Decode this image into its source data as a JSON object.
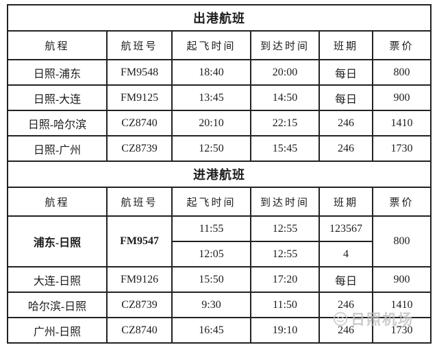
{
  "table": {
    "columns": [
      {
        "key": "route",
        "label": "航程"
      },
      {
        "key": "flight-no",
        "label": "航班号"
      },
      {
        "key": "dep-time",
        "label": "起飞时间"
      },
      {
        "key": "arr-time",
        "label": "到达时间"
      },
      {
        "key": "schedule",
        "label": "班期"
      },
      {
        "key": "price",
        "label": "票价"
      }
    ],
    "sections": [
      {
        "title": "出港航班",
        "rows": [
          {
            "cells": [
              {
                "n": "route",
                "t": "日照-浦东"
              },
              {
                "n": "flight-no",
                "t": "FM9548"
              },
              {
                "n": "dep-time",
                "t": "18:40"
              },
              {
                "n": "arr-time",
                "t": "20:00"
              },
              {
                "n": "schedule",
                "t": "每日"
              },
              {
                "n": "price",
                "t": "800"
              }
            ]
          },
          {
            "cells": [
              {
                "n": "route",
                "t": "日照-大连"
              },
              {
                "n": "flight-no",
                "t": "FM9125"
              },
              {
                "n": "dep-time",
                "t": "13:45"
              },
              {
                "n": "arr-time",
                "t": "14:50"
              },
              {
                "n": "schedule",
                "t": "每日"
              },
              {
                "n": "price",
                "t": "900"
              }
            ]
          },
          {
            "cells": [
              {
                "n": "route",
                "t": "日照-哈尔滨"
              },
              {
                "n": "flight-no",
                "t": "CZ8740"
              },
              {
                "n": "dep-time",
                "t": "20:10"
              },
              {
                "n": "arr-time",
                "t": "22:15"
              },
              {
                "n": "schedule",
                "t": "246"
              },
              {
                "n": "price",
                "t": "1410"
              }
            ]
          },
          {
            "cells": [
              {
                "n": "route",
                "t": "日照-广州"
              },
              {
                "n": "flight-no",
                "t": "CZ8739"
              },
              {
                "n": "dep-time",
                "t": "12:50"
              },
              {
                "n": "arr-time",
                "t": "15:45"
              },
              {
                "n": "schedule",
                "t": "246"
              },
              {
                "n": "price",
                "t": "1730"
              }
            ]
          }
        ]
      },
      {
        "title": "进港航班",
        "rows": [
          {
            "cells": [
              {
                "n": "route",
                "t": "浦东-日照",
                "rs": 2,
                "b": true
              },
              {
                "n": "flight-no",
                "t": "FM9547",
                "rs": 2,
                "b": true
              },
              {
                "n": "dep-time",
                "t": "11:55"
              },
              {
                "n": "arr-time",
                "t": "12:55"
              },
              {
                "n": "schedule",
                "t": "123567"
              },
              {
                "n": "price",
                "t": "800",
                "rs": 2
              }
            ]
          },
          {
            "cells": [
              {
                "n": "dep-time",
                "t": "12:05"
              },
              {
                "n": "arr-time",
                "t": "12:55"
              },
              {
                "n": "schedule",
                "t": "4"
              }
            ]
          },
          {
            "cells": [
              {
                "n": "route",
                "t": "大连-日照"
              },
              {
                "n": "flight-no",
                "t": "FM9126"
              },
              {
                "n": "dep-time",
                "t": "15:50"
              },
              {
                "n": "arr-time",
                "t": "17:20"
              },
              {
                "n": "schedule",
                "t": "每日"
              },
              {
                "n": "price",
                "t": "900"
              }
            ]
          },
          {
            "cells": [
              {
                "n": "route",
                "t": "哈尔滨-日照"
              },
              {
                "n": "flight-no",
                "t": "CZ8739"
              },
              {
                "n": "dep-time",
                "t": "9:30"
              },
              {
                "n": "arr-time",
                "t": "11:50"
              },
              {
                "n": "schedule",
                "t": "246"
              },
              {
                "n": "price",
                "t": "1410"
              }
            ]
          },
          {
            "cells": [
              {
                "n": "route",
                "t": "广州-日照"
              },
              {
                "n": "flight-no",
                "t": "CZ8740"
              },
              {
                "n": "dep-time",
                "t": "16:45"
              },
              {
                "n": "arr-time",
                "t": "19:10"
              },
              {
                "n": "schedule",
                "t": "246"
              },
              {
                "n": "price",
                "t": "1730"
              }
            ]
          }
        ]
      }
    ]
  },
  "watermark": {
    "icon": "rizhao-airport-logo-icon",
    "text": "日照机场"
  },
  "colors": {
    "background": "#ffffff",
    "border": "#212121",
    "text": "#1c1c1c",
    "watermark": "#bfbfbf"
  }
}
